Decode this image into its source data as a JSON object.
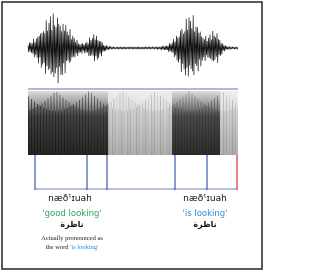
{
  "annotations": [
    {
      "transcription": "næðˤɪuah",
      "gloss": "'good looking'",
      "arabic": "ناظرة"
    },
    {
      "transcription": "næðˤɪuah",
      "gloss": "'is looking'",
      "arabic": "ناظرة"
    }
  ],
  "note": {
    "line1": "Actually pronounced as",
    "line2": "the word",
    "highlight": "'is looking'"
  }
}
